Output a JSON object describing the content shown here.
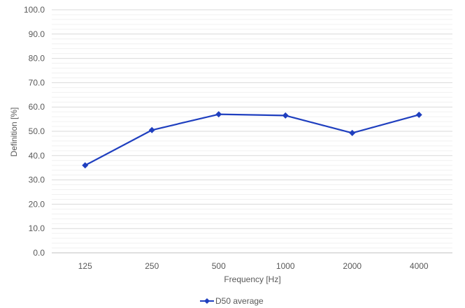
{
  "chart_data": {
    "type": "line",
    "categories": [
      "125",
      "250",
      "500",
      "1000",
      "2000",
      "4000"
    ],
    "series": [
      {
        "name": "D50 average",
        "values": [
          36.0,
          50.5,
          57.0,
          56.5,
          49.3,
          56.8
        ],
        "color": "#1F3FBF"
      }
    ],
    "xlabel": "Frequency [Hz]",
    "ylabel": "Definition [%]",
    "ylim": [
      0,
      100
    ],
    "ytick_labels": [
      "0.0",
      "10.0",
      "20.0",
      "30.0",
      "40.0",
      "50.0",
      "60.0",
      "70.0",
      "80.0",
      "90.0",
      "100.0"
    ],
    "grid": true,
    "minor_grid": true,
    "marker": "diamond",
    "legend_position": "bottom"
  }
}
